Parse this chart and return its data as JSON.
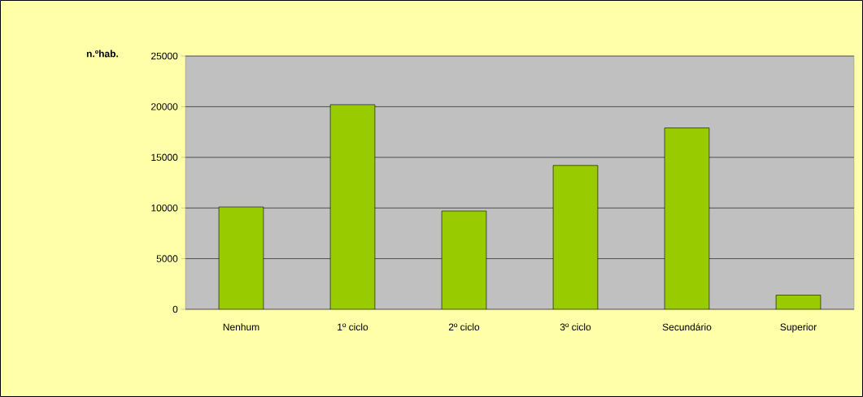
{
  "chart_data": {
    "type": "bar",
    "ylabel": "n.ºhab.",
    "categories": [
      "Nenhum",
      "1º ciclo",
      "2º ciclo",
      "3º ciclo",
      "Secundário",
      "Superior"
    ],
    "values": [
      10100,
      20200,
      9700,
      14200,
      17900,
      1400
    ],
    "color": "#99cc00",
    "ylim": [
      0,
      25000
    ],
    "yticks": [
      0,
      5000,
      10000,
      15000,
      20000,
      25000
    ],
    "grid": "y"
  }
}
